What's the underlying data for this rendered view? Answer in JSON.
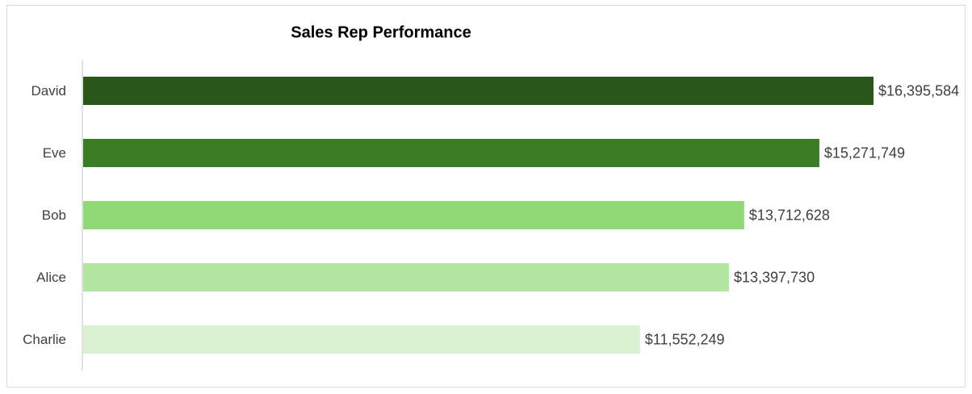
{
  "chart_data": {
    "type": "bar",
    "orientation": "horizontal",
    "title": "Sales Rep Performance",
    "xlabel": "",
    "ylabel": "",
    "categories": [
      "David",
      "Eve",
      "Bob",
      "Alice",
      "Charlie"
    ],
    "values": [
      16395584,
      15271749,
      13712628,
      13397730,
      11552249
    ],
    "data_labels": [
      "$16,395,584",
      "$15,271,749",
      "$13,712,628",
      "$13,397,730",
      "$11,552,249"
    ],
    "bar_colors": [
      "#285719",
      "#3a7d25",
      "#8fd976",
      "#b4e6a1",
      "#dbf2d2"
    ],
    "xlim": [
      0,
      16395584
    ],
    "grid": false,
    "legend": "none"
  }
}
